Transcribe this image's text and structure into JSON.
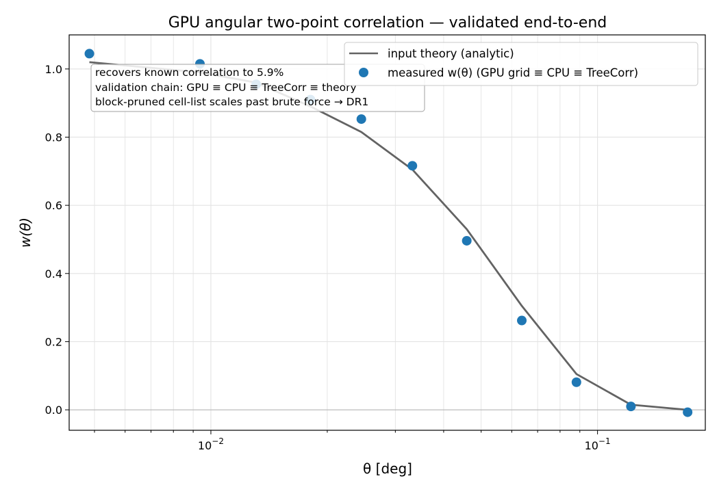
{
  "chart_data": {
    "type": "line",
    "title": "GPU angular two-point correlation — validated end-to-end",
    "xlabel": "θ  [deg]",
    "ylabel": "w(θ)",
    "xscale": "log",
    "xlim": [
      0.0043,
      0.19
    ],
    "ylim": [
      -0.06,
      1.1
    ],
    "x_ticks": [
      {
        "value": 0.01,
        "base": "10",
        "exp": "−2"
      },
      {
        "value": 0.1,
        "base": "10",
        "exp": "−1"
      }
    ],
    "y_ticks": [
      {
        "value": 0.0,
        "label": "0.0"
      },
      {
        "value": 0.2,
        "label": "0.2"
      },
      {
        "value": 0.4,
        "label": "0.4"
      },
      {
        "value": 0.6,
        "label": "0.6"
      },
      {
        "value": 0.8,
        "label": "0.8"
      },
      {
        "value": 1.0,
        "label": "1.0"
      }
    ],
    "grid": true,
    "legend_position": "top-right",
    "series": [
      {
        "name": "input theory (analytic)",
        "kind": "line",
        "color": "#636363",
        "x": [
          0.00485,
          0.00937,
          0.0131,
          0.0181,
          0.0245,
          0.0332,
          0.0459,
          0.0637,
          0.0882,
          0.122,
          0.171
        ],
        "y": [
          1.02,
          0.99,
          0.96,
          0.89,
          0.815,
          0.705,
          0.53,
          0.305,
          0.105,
          0.015,
          0.0
        ]
      },
      {
        "name": "measured  w(θ)  (GPU grid ≡ CPU ≡ TreeCorr)",
        "kind": "scatter",
        "color": "#1f77b4",
        "x": [
          0.00485,
          0.00937,
          0.0131,
          0.0181,
          0.0245,
          0.0332,
          0.0459,
          0.0637,
          0.0882,
          0.122,
          0.171
        ],
        "y": [
          1.045,
          1.015,
          0.955,
          0.91,
          0.853,
          0.716,
          0.496,
          0.262,
          0.081,
          0.01,
          -0.007
        ]
      }
    ],
    "annotation_lines": [
      "recovers known correlation to 5.9%",
      "validation chain: GPU ≡ CPU ≡ TreeCorr ≡ theory",
      "block-pruned cell-list scales past brute force → DR1"
    ]
  }
}
